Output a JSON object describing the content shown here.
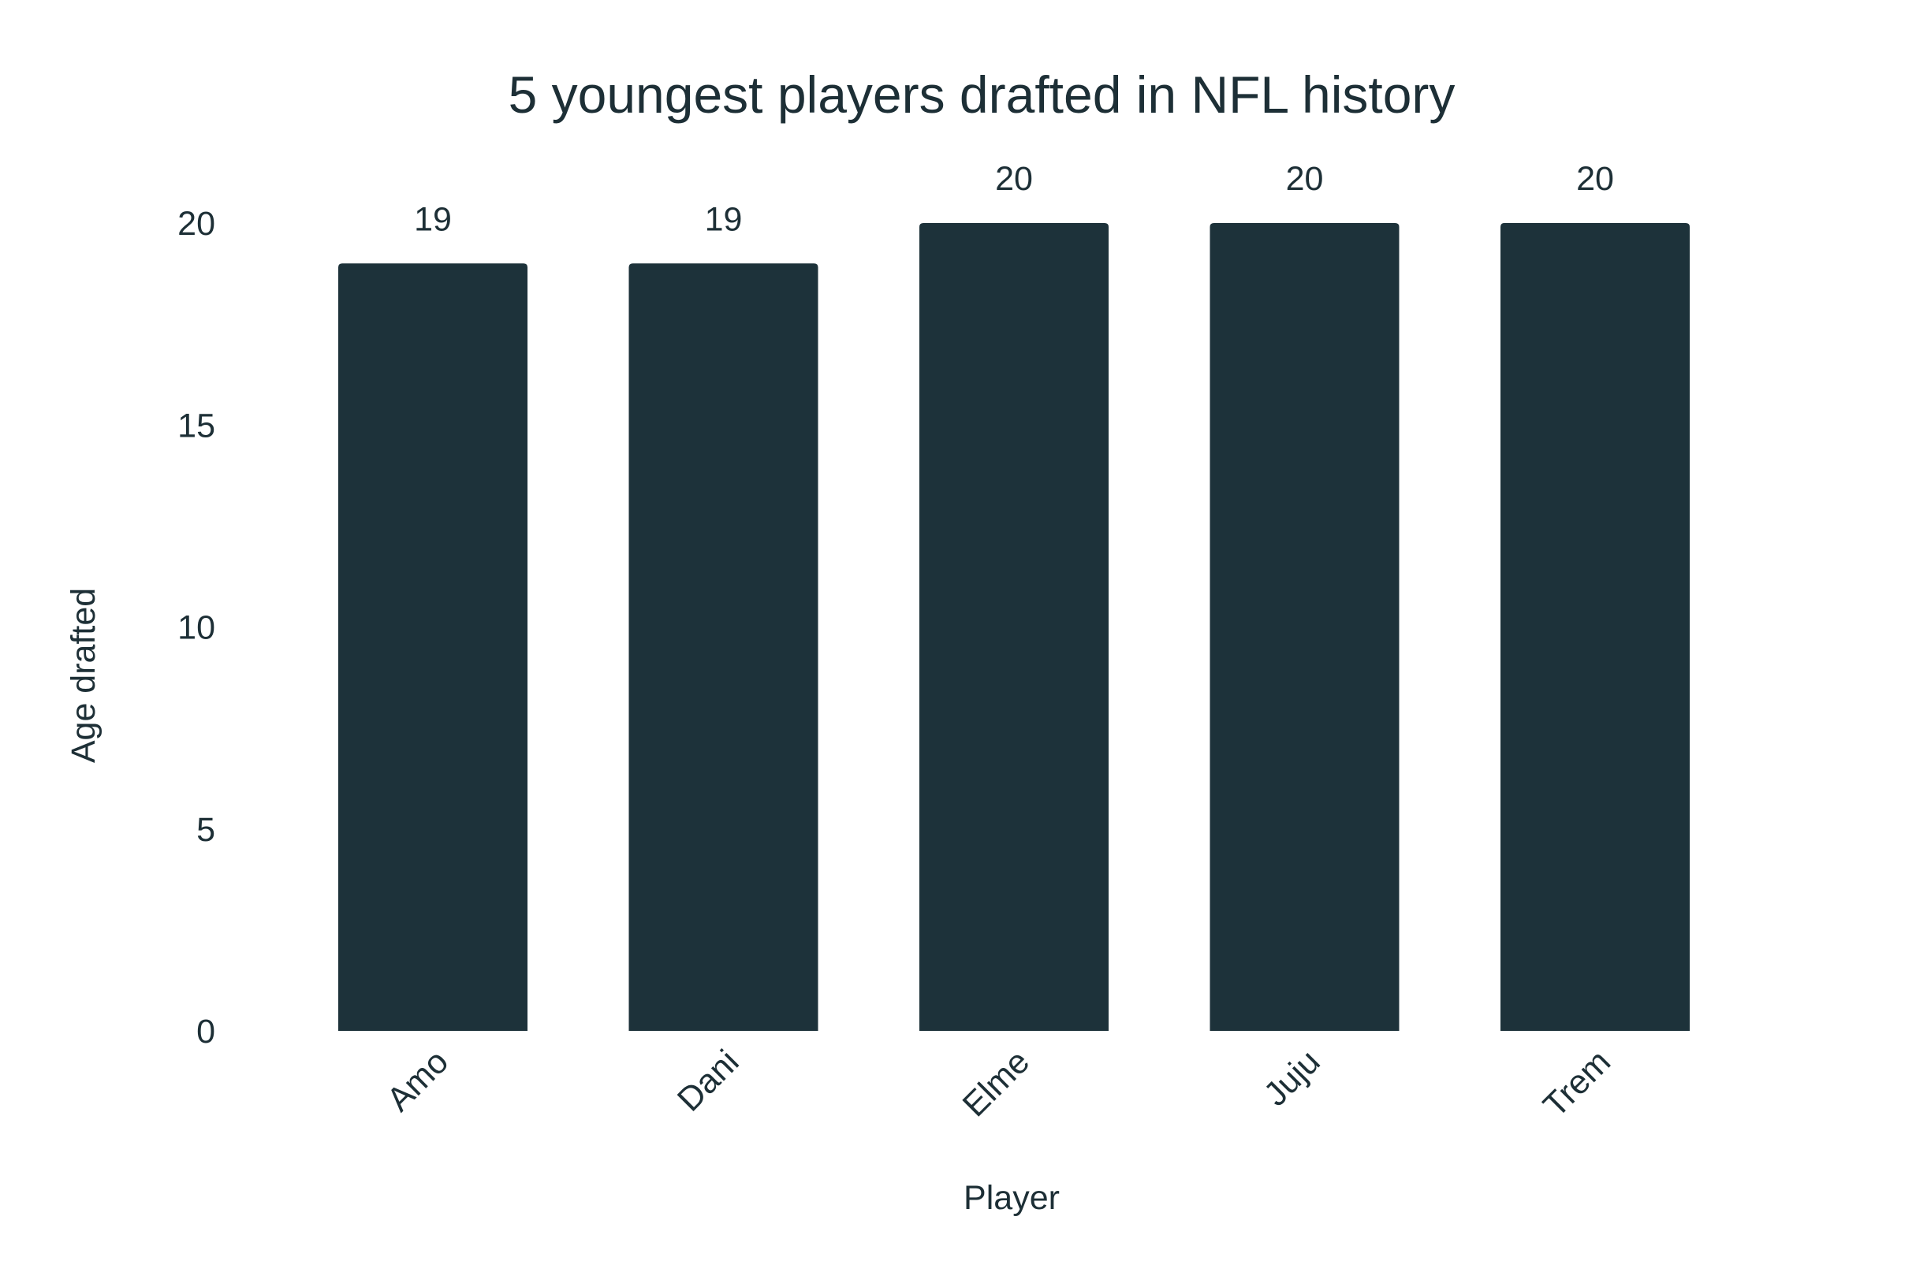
{
  "chart_data": {
    "type": "bar",
    "title": "5 youngest players drafted in NFL history",
    "xlabel": "Player",
    "ylabel": "Age drafted",
    "categories": [
      "Amo",
      "Dani",
      "Elme",
      "Juju",
      "Trem"
    ],
    "values": [
      19,
      19,
      20,
      20,
      20
    ],
    "ylim": [
      0,
      20
    ],
    "yticks": [
      0,
      5,
      10,
      15,
      20
    ],
    "data_labels": true,
    "grid": false,
    "legend": "none",
    "bar_color": "#1d323a",
    "text_color": "#1d2f36",
    "background": "#ffffff"
  }
}
